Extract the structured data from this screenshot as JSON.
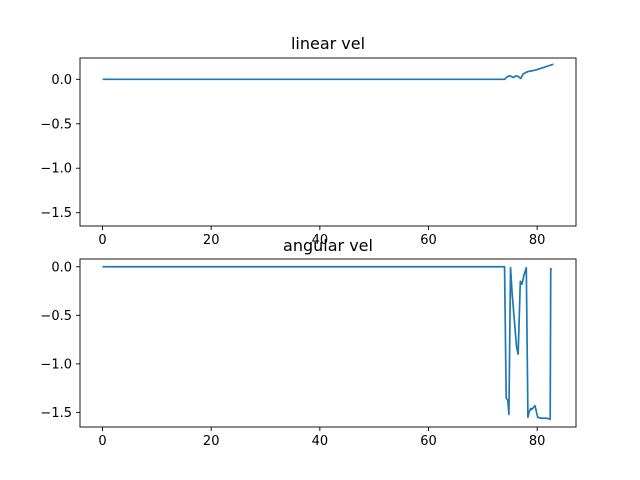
{
  "colors": {
    "series": "#1f77b4",
    "background": "#ffffff"
  },
  "chart_data": [
    {
      "type": "line",
      "title": "linear vel",
      "xlabel": "",
      "ylabel": "",
      "xlim": [
        -4.15,
        87.15
      ],
      "ylim": [
        -1.65,
        0.24
      ],
      "xticks": [
        0,
        20,
        40,
        60,
        80
      ],
      "yticks": [
        0.0,
        -0.5,
        -1.0,
        -1.5
      ],
      "xtick_labels": [
        "0",
        "20",
        "40",
        "60",
        "80"
      ],
      "ytick_labels": [
        "0.0",
        "−0.5",
        "−1.0",
        "−1.5"
      ],
      "grid": false,
      "series": [
        {
          "x": [
            0,
            74.0,
            74.5,
            75.0,
            75.6,
            76.1,
            76.6,
            77.0,
            77.4,
            78.0,
            78.5,
            79.0,
            80.0,
            81.0,
            82.0,
            83.0
          ],
          "y": [
            0.0,
            0.0,
            0.03,
            0.04,
            0.02,
            0.04,
            0.03,
            0.01,
            0.06,
            0.08,
            0.09,
            0.095,
            0.11,
            0.13,
            0.15,
            0.17
          ]
        }
      ]
    },
    {
      "type": "line",
      "title": "angular vel",
      "xlabel": "",
      "ylabel": "",
      "xlim": [
        -4.15,
        87.15
      ],
      "ylim": [
        -1.65,
        0.08
      ],
      "xticks": [
        0,
        20,
        40,
        60,
        80
      ],
      "yticks": [
        0.0,
        -0.5,
        -1.0,
        -1.5
      ],
      "xtick_labels": [
        "0",
        "20",
        "40",
        "60",
        "80"
      ],
      "ytick_labels": [
        "0.0",
        "−0.5",
        "−1.0",
        "−1.5"
      ],
      "grid": false,
      "series": [
        {
          "x": [
            0,
            74.0,
            74.3,
            74.6,
            74.8,
            75.1,
            75.4,
            76.2,
            76.5,
            76.9,
            77.2,
            77.6,
            78.0,
            78.3,
            78.5,
            78.8,
            79.0,
            79.6,
            80.1,
            80.8,
            81.3,
            81.8,
            82.4,
            82.5,
            82.7
          ],
          "y": [
            0.0,
            0.0,
            -1.35,
            -1.38,
            -1.52,
            -0.01,
            -0.28,
            -0.82,
            -0.9,
            -0.15,
            -0.18,
            -0.08,
            -0.01,
            -1.55,
            -1.5,
            -1.46,
            -1.47,
            -1.43,
            -1.55,
            -1.56,
            -1.56,
            -1.56,
            -1.57,
            -0.02,
            -0.03
          ]
        }
      ]
    }
  ]
}
